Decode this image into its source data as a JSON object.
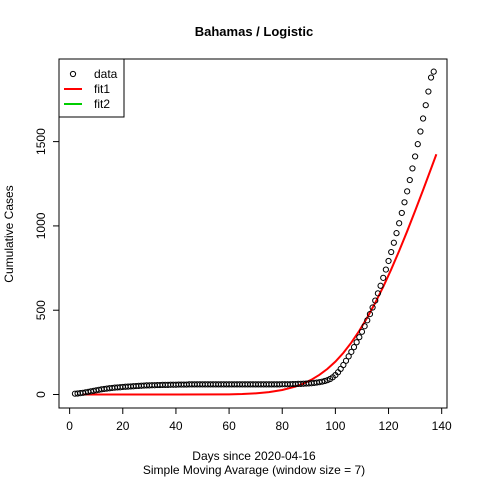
{
  "chart_data": {
    "type": "scatter",
    "title": "Bahamas / Logistic",
    "xlabel": "Days since 2020-04-16",
    "subtitle": "Simple Moving Avarage (window size = 7)",
    "ylabel": "Cumulative Cases",
    "xlim": [
      -4,
      142
    ],
    "ylim": [
      -80,
      1990
    ],
    "x_ticks": [
      0,
      20,
      40,
      60,
      80,
      100,
      120,
      140
    ],
    "y_ticks": [
      0,
      500,
      1000,
      1500
    ],
    "grid": false,
    "legend_position": "top-left",
    "legend": [
      {
        "label": "data",
        "type": "points",
        "color": "#000000"
      },
      {
        "label": "fit1",
        "type": "line",
        "color": "#ff0000"
      },
      {
        "label": "fit2",
        "type": "line",
        "color": "#00cd00"
      }
    ],
    "series": [
      {
        "name": "data",
        "type": "scatter",
        "color": "#000000",
        "points": [
          [
            2,
            5
          ],
          [
            3,
            6
          ],
          [
            4,
            8
          ],
          [
            5,
            10
          ],
          [
            6,
            13
          ],
          [
            7,
            16
          ],
          [
            8,
            19
          ],
          [
            9,
            22
          ],
          [
            10,
            25
          ],
          [
            11,
            28
          ],
          [
            12,
            31
          ],
          [
            13,
            33
          ],
          [
            14,
            35
          ],
          [
            15,
            37
          ],
          [
            16,
            39
          ],
          [
            17,
            41
          ],
          [
            18,
            42
          ],
          [
            19,
            43
          ],
          [
            20,
            45
          ],
          [
            21,
            46
          ],
          [
            22,
            47
          ],
          [
            23,
            48
          ],
          [
            24,
            49
          ],
          [
            25,
            50
          ],
          [
            26,
            51
          ],
          [
            27,
            52
          ],
          [
            28,
            53
          ],
          [
            29,
            54
          ],
          [
            30,
            54
          ],
          [
            31,
            55
          ],
          [
            32,
            55
          ],
          [
            33,
            56
          ],
          [
            34,
            56
          ],
          [
            35,
            57
          ],
          [
            36,
            57
          ],
          [
            37,
            57
          ],
          [
            38,
            58
          ],
          [
            39,
            58
          ],
          [
            40,
            58
          ],
          [
            41,
            59
          ],
          [
            42,
            59
          ],
          [
            43,
            59
          ],
          [
            44,
            59
          ],
          [
            45,
            60
          ],
          [
            46,
            60
          ],
          [
            47,
            60
          ],
          [
            48,
            60
          ],
          [
            49,
            60
          ],
          [
            50,
            60
          ],
          [
            51,
            60
          ],
          [
            52,
            60
          ],
          [
            53,
            60
          ],
          [
            54,
            60
          ],
          [
            55,
            60
          ],
          [
            56,
            60
          ],
          [
            57,
            60
          ],
          [
            58,
            60
          ],
          [
            59,
            60
          ],
          [
            60,
            60
          ],
          [
            61,
            60
          ],
          [
            62,
            60
          ],
          [
            63,
            60
          ],
          [
            64,
            60
          ],
          [
            65,
            60
          ],
          [
            66,
            60
          ],
          [
            67,
            60
          ],
          [
            68,
            60
          ],
          [
            69,
            60
          ],
          [
            70,
            60
          ],
          [
            71,
            60
          ],
          [
            72,
            60
          ],
          [
            73,
            60
          ],
          [
            74,
            60
          ],
          [
            75,
            60
          ],
          [
            76,
            60
          ],
          [
            77,
            60
          ],
          [
            78,
            60
          ],
          [
            79,
            60
          ],
          [
            80,
            61
          ],
          [
            81,
            61
          ],
          [
            82,
            61
          ],
          [
            83,
            61
          ],
          [
            84,
            62
          ],
          [
            85,
            62
          ],
          [
            86,
            63
          ],
          [
            87,
            63
          ],
          [
            88,
            64
          ],
          [
            89,
            65
          ],
          [
            90,
            66
          ],
          [
            91,
            67
          ],
          [
            92,
            69
          ],
          [
            93,
            71
          ],
          [
            94,
            73
          ],
          [
            95,
            76
          ],
          [
            96,
            80
          ],
          [
            97,
            85
          ],
          [
            98,
            92
          ],
          [
            99,
            102
          ],
          [
            100,
            115
          ],
          [
            101,
            132
          ],
          [
            102,
            152
          ],
          [
            103,
            175
          ],
          [
            104,
            200
          ],
          [
            105,
            226
          ],
          [
            106,
            253
          ],
          [
            107,
            281
          ],
          [
            108,
            310
          ],
          [
            109,
            340
          ],
          [
            110,
            372
          ],
          [
            111,
            405
          ],
          [
            112,
            440
          ],
          [
            113,
            477
          ],
          [
            114,
            516
          ],
          [
            115,
            557
          ],
          [
            116,
            600
          ],
          [
            117,
            645
          ],
          [
            118,
            692
          ],
          [
            119,
            741
          ],
          [
            120,
            792
          ],
          [
            121,
            845
          ],
          [
            122,
            900
          ],
          [
            123,
            957
          ],
          [
            124,
            1016
          ],
          [
            125,
            1077
          ],
          [
            126,
            1140
          ],
          [
            127,
            1205
          ],
          [
            128,
            1272
          ],
          [
            129,
            1341
          ],
          [
            130,
            1412
          ],
          [
            131,
            1485
          ],
          [
            132,
            1560
          ],
          [
            133,
            1637
          ],
          [
            134,
            1716
          ],
          [
            135,
            1797
          ],
          [
            136,
            1880
          ],
          [
            137,
            1915
          ]
        ]
      },
      {
        "name": "fit1",
        "type": "line",
        "color": "#ff0000",
        "points": [
          [
            5,
            0
          ],
          [
            20,
            0
          ],
          [
            40,
            0
          ],
          [
            60,
            1
          ],
          [
            65,
            3
          ],
          [
            70,
            7
          ],
          [
            75,
            14
          ],
          [
            80,
            27
          ],
          [
            85,
            47
          ],
          [
            88,
            65
          ],
          [
            91,
            88
          ],
          [
            94,
            117
          ],
          [
            97,
            152
          ],
          [
            100,
            195
          ],
          [
            103,
            247
          ],
          [
            106,
            308
          ],
          [
            109,
            378
          ],
          [
            112,
            457
          ],
          [
            115,
            544
          ],
          [
            118,
            639
          ],
          [
            121,
            742
          ],
          [
            124,
            852
          ],
          [
            127,
            968
          ],
          [
            130,
            1089
          ],
          [
            133,
            1213
          ],
          [
            136,
            1340
          ],
          [
            138,
            1425
          ]
        ]
      }
    ]
  }
}
